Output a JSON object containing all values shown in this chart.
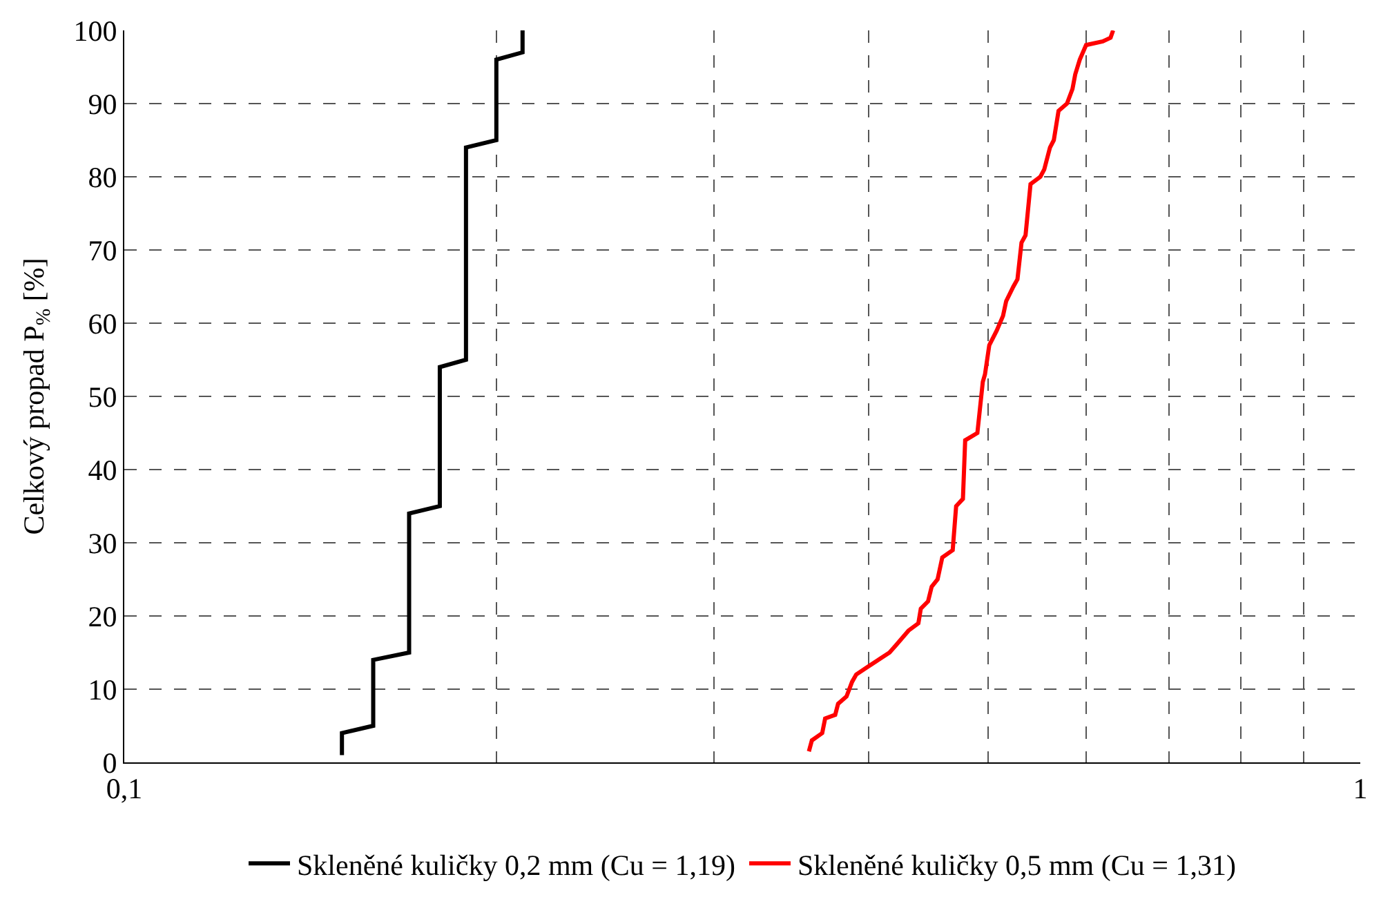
{
  "chart_data": {
    "type": "line",
    "ylabel": "Celkový propad P$_{%}$ [%]",
    "log": "x",
    "grid": true,
    "legend": "bottom",
    "marker": "none",
    "line_style": "solid",
    "xlim": [
      0.1,
      1
    ],
    "ylim": [
      0,
      100
    ],
    "xticks": [
      {
        "value": 0.1,
        "label": "0,1"
      },
      {
        "value": 0.2,
        "label": null
      },
      {
        "value": 0.3,
        "label": null
      },
      {
        "value": 0.4,
        "label": null
      },
      {
        "value": 0.5,
        "label": null
      },
      {
        "value": 0.6,
        "label": null
      },
      {
        "value": 0.7,
        "label": null
      },
      {
        "value": 0.8,
        "label": null
      },
      {
        "value": 0.9,
        "label": null
      },
      {
        "value": 1,
        "label": "1"
      }
    ],
    "yticks": [
      0,
      10,
      20,
      30,
      40,
      50,
      60,
      70,
      80,
      90,
      100
    ],
    "series": [
      {
        "name": "Skleněné kuličky 0,2 mm (Cu = 1,19)",
        "color": "#000000",
        "x": [
          0.15,
          0.15,
          0.159,
          0.159,
          0.17,
          0.17,
          0.18,
          0.18,
          0.189,
          0.189,
          0.2,
          0.2,
          0.21,
          0.21
        ],
        "values": [
          1,
          4,
          5,
          14,
          15,
          34,
          35,
          54,
          55,
          84,
          85,
          96,
          97,
          100
        ]
      },
      {
        "name": "Skleněné kuličky 0,5 mm (Cu = 1,31)",
        "color": "#ff0000",
        "x": [
          0.358,
          0.36,
          0.367,
          0.369,
          0.376,
          0.378,
          0.384,
          0.388,
          0.391,
          0.399,
          0.416,
          0.421,
          0.431,
          0.439,
          0.441,
          0.447,
          0.45,
          0.455,
          0.459,
          0.468,
          0.471,
          0.477,
          0.479,
          0.49,
          0.495,
          0.497,
          0.501,
          0.508,
          0.514,
          0.517,
          0.524,
          0.528,
          0.532,
          0.536,
          0.541,
          0.551,
          0.555,
          0.561,
          0.565,
          0.57,
          0.579,
          0.585,
          0.588,
          0.593,
          0.6,
          0.619,
          0.628,
          0.631
        ],
        "values": [
          1.5,
          3,
          4,
          6,
          6.5,
          8,
          9,
          11,
          12,
          13,
          15,
          16,
          18,
          19,
          21,
          22,
          24,
          25,
          28,
          29,
          35,
          36,
          44,
          45,
          52,
          53,
          57,
          59,
          61,
          63,
          65,
          66,
          71,
          72,
          79,
          80,
          81,
          84,
          85,
          89,
          90,
          92,
          94,
          96,
          98,
          98.5,
          99,
          100
        ]
      }
    ]
  }
}
